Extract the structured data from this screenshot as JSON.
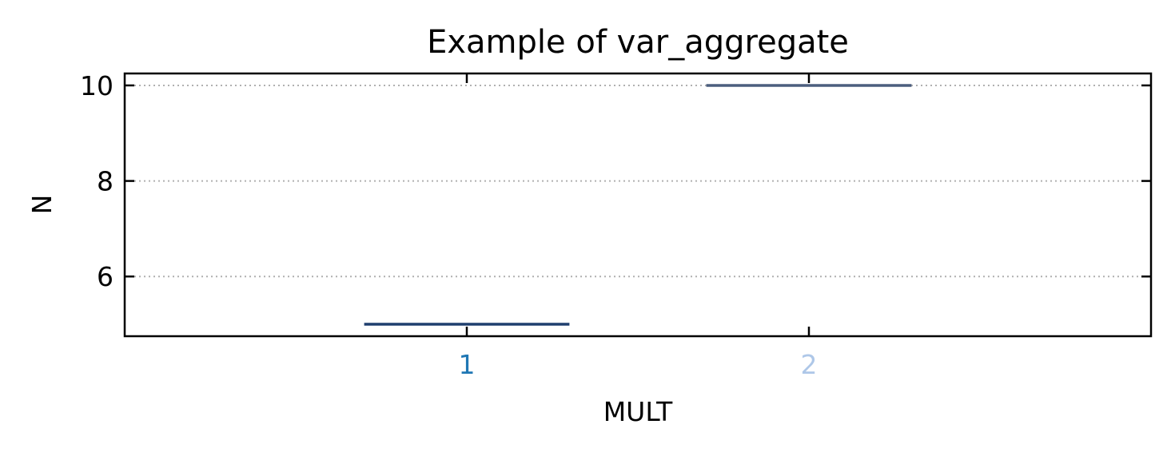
{
  "chart_data": {
    "type": "box",
    "title": "Example of var_aggregate",
    "xlabel": "MULT",
    "ylabel": "N",
    "categories": [
      "1",
      "2"
    ],
    "category_label_colors": [
      "#1f77b4",
      "#aec7e8"
    ],
    "series": [
      {
        "category": "1",
        "min": 5,
        "q1": 5,
        "median": 5,
        "q3": 5,
        "max": 5,
        "color": "#1f3f6e"
      },
      {
        "category": "2",
        "min": 10,
        "q1": 10,
        "median": 10,
        "q3": 10,
        "max": 10,
        "color": "#4c5e7e"
      }
    ],
    "ylim": [
      4.75,
      10.25
    ],
    "xlim": [
      0,
      3
    ],
    "yticks": [
      6,
      8,
      10
    ],
    "ytick_labels": [
      "6",
      "8",
      "10"
    ],
    "grid": "y",
    "legend": "none"
  }
}
